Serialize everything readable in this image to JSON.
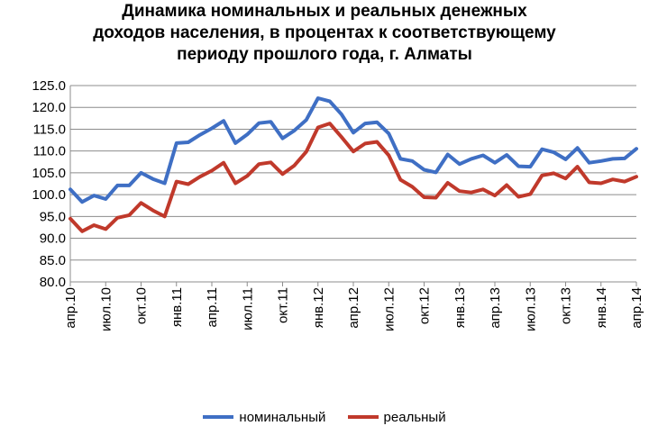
{
  "title_lines": [
    "Динамика номинальных и реальных денежных",
    "доходов населения, в процентах к соответствующему",
    "периоду прошлого года, г. Алматы"
  ],
  "chart_data": {
    "type": "line",
    "title": "Динамика номинальных и реальных денежных доходов населения, в процентах к соответствующему периоду прошлого года, г. Алматы",
    "ylim": [
      80,
      125
    ],
    "yticks": [
      "80.0",
      "85.0",
      "90.0",
      "95.0",
      "100.0",
      "105.0",
      "110.0",
      "115.0",
      "120.0",
      "125.0"
    ],
    "x_tick_labels": [
      "апр.10",
      "июл.10",
      "окт.10",
      "янв.11",
      "апр.11",
      "июл.11",
      "окт.11",
      "янв.12",
      "апр.12",
      "июл.12",
      "окт.12",
      "янв.13",
      "апр.13",
      "июл.13",
      "окт.13",
      "янв.14",
      "апр.14"
    ],
    "x": [
      "апр.10",
      "май.10",
      "июн.10",
      "июл.10",
      "авг.10",
      "сен.10",
      "окт.10",
      "ноя.10",
      "дек.10",
      "янв.11",
      "фев.11",
      "мар.11",
      "апр.11",
      "май.11",
      "июн.11",
      "июл.11",
      "авг.11",
      "сен.11",
      "окт.11",
      "ноя.11",
      "дек.11",
      "янв.12",
      "фев.12",
      "мар.12",
      "апр.12",
      "май.12",
      "июн.12",
      "июл.12",
      "авг.12",
      "сен.12",
      "окт.12",
      "ноя.12",
      "дек.12",
      "янв.13",
      "фев.13",
      "мар.13",
      "апр.13",
      "май.13",
      "июн.13",
      "июл.13",
      "авг.13",
      "сен.13",
      "окт.13",
      "ноя.13",
      "дек.13",
      "янв.14",
      "фев.14",
      "мар.14",
      "апр.14"
    ],
    "series": [
      {
        "name": "номинальный",
        "color": "#3f6fc4",
        "values": [
          101.2,
          98.3,
          99.8,
          99.0,
          102.1,
          102.1,
          105.0,
          103.6,
          102.6,
          111.8,
          112.0,
          113.7,
          115.2,
          116.9,
          111.8,
          113.8,
          116.4,
          116.7,
          112.9,
          114.7,
          117.1,
          122.1,
          121.4,
          118.4,
          114.2,
          116.3,
          116.6,
          114.0,
          108.2,
          107.7,
          105.7,
          105.1,
          109.2,
          107.0,
          108.2,
          109.0,
          107.3,
          109.1,
          106.5,
          106.4,
          110.4,
          109.7,
          108.1,
          110.7,
          107.3,
          107.7,
          108.2,
          108.3,
          110.5
        ]
      },
      {
        "name": "реальный",
        "color": "#c0392b",
        "values": [
          94.5,
          91.6,
          93.0,
          92.1,
          94.7,
          95.3,
          98.1,
          96.4,
          95.0,
          103.0,
          102.4,
          104.1,
          105.5,
          107.3,
          102.6,
          104.3,
          107.0,
          107.4,
          104.7,
          106.7,
          109.8,
          115.4,
          116.3,
          113.2,
          109.9,
          111.7,
          112.1,
          109.0,
          103.4,
          101.8,
          99.4,
          99.3,
          102.7,
          100.8,
          100.5,
          101.2,
          99.8,
          102.2,
          99.5,
          100.1,
          104.4,
          104.9,
          103.7,
          106.4,
          102.8,
          102.6,
          103.5,
          103.0,
          104.1
        ]
      }
    ],
    "grid": "horizontal",
    "legend_position": "bottom"
  }
}
